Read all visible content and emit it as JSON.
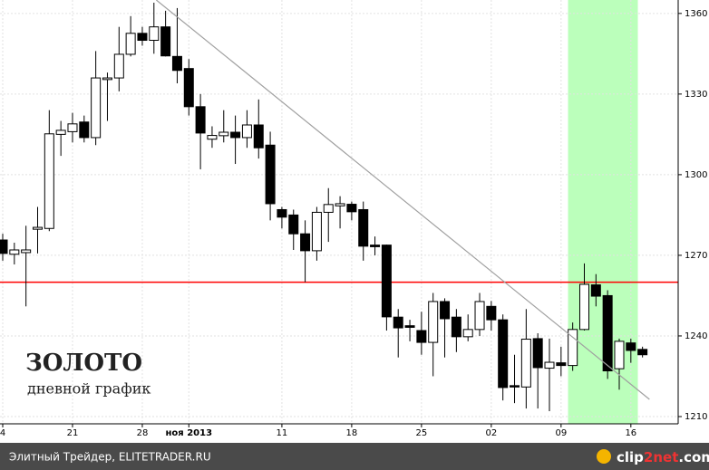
{
  "chart_data": {
    "type": "candlestick",
    "categories": [
      "4",
      null,
      null,
      null,
      null,
      null,
      "21",
      null,
      null,
      null,
      null,
      null,
      "28",
      null,
      null,
      null,
      "ноя 2013",
      null,
      null,
      null,
      null,
      null,
      null,
      null,
      "11",
      null,
      null,
      null,
      null,
      null,
      "18",
      null,
      null,
      null,
      null,
      null,
      "25",
      null,
      null,
      null,
      null,
      null,
      "02",
      null,
      null,
      null,
      null,
      null,
      "09",
      null,
      null,
      null,
      null,
      null,
      "16",
      null
    ],
    "open": [
      1275.7,
      1270.4,
      1271,
      1279.7,
      1280,
      1315,
      1316,
      1319.6,
      1313.8,
      1335.4,
      1336,
      1344.8,
      1352.6,
      1350,
      1355,
      1344,
      1339.5,
      1325.3,
      1313.2,
      1314.5,
      1315.8,
      1313.8,
      1318.5,
      1311,
      1287,
      1285,
      1278,
      1271.7,
      1286,
      1288.4,
      1289,
      1287,
      1273.8,
      1273.8,
      1247,
      1243.8,
      1242,
      1237.6,
      1252.8,
      1247,
      1239.7,
      1242.4,
      1251,
      1246,
      1221.5,
      1221,
      1239,
      1228,
      1230,
      1229,
      1242.4,
      1259,
      1255,
      1227.8,
      1237.4,
      1235
    ],
    "high": [
      1278,
      1274.7,
      1281,
      1288,
      1324,
      1320,
      1323,
      1322,
      1346,
      1338,
      1355,
      1359,
      1355,
      1364,
      1361,
      1362,
      1343,
      1330,
      1318,
      1324,
      1322,
      1324,
      1328,
      1316,
      1288,
      1287,
      1283,
      1288,
      1295,
      1292,
      1290,
      1290,
      1277,
      1274,
      1250,
      1246,
      1249,
      1256,
      1254,
      1250,
      1248,
      1256,
      1253,
      1248,
      1233,
      1250,
      1241,
      1239,
      1236,
      1245,
      1267,
      1263,
      1257,
      1239,
      1239,
      1236
    ],
    "low": [
      1268,
      1266.6,
      1251,
      1270.7,
      1279,
      1307,
      1312,
      1312,
      1311,
      1320,
      1331,
      1344,
      1348,
      1345,
      1344,
      1334,
      1322,
      1302,
      1310,
      1312,
      1304,
      1310,
      1306,
      1283,
      1280,
      1272,
      1260,
      1268,
      1275,
      1280,
      1283,
      1268,
      1270,
      1242,
      1232,
      1238,
      1233,
      1225,
      1232,
      1234,
      1238,
      1240,
      1242,
      1216,
      1215,
      1213,
      1213,
      1212,
      1225,
      1227,
      1242,
      1251,
      1224,
      1220,
      1230,
      1232
    ],
    "close": [
      1270.7,
      1272,
      1272,
      1280.4,
      1315.2,
      1316.5,
      1318.9,
      1313.8,
      1336,
      1336,
      1344.8,
      1352.6,
      1350,
      1355,
      1344.2,
      1338.8,
      1325.3,
      1315.5,
      1314.6,
      1315.8,
      1313.8,
      1318.5,
      1310,
      1289.2,
      1284.2,
      1278,
      1271.7,
      1286,
      1288.9,
      1289.2,
      1286.2,
      1273.4,
      1273.2,
      1247.1,
      1243,
      1243.2,
      1237.6,
      1252.8,
      1246.4,
      1239.7,
      1242.4,
      1252.8,
      1246,
      1220.8,
      1221,
      1238.8,
      1228.2,
      1230.2,
      1229,
      1242.4,
      1259.2,
      1254.8,
      1227,
      1238,
      1234.6,
      1233
    ],
    "up_color": "#ffffff",
    "down_color": "#000000",
    "ylim": [
      1207.3,
      1365
    ],
    "yticks": [
      1210,
      1240,
      1270,
      1300,
      1330,
      1360
    ],
    "grid": true,
    "title": "ЗОЛОТО",
    "subtitle": "дневной график",
    "hline": {
      "y": 1260,
      "color": "#ff0000"
    },
    "trendline": {
      "x": [
        13.2,
        55.6
      ],
      "y": [
        1365,
        1216.4
      ],
      "color": "#a0a0a0"
    },
    "highlight": {
      "x": [
        48.6,
        54.6
      ],
      "color": "#bbffbb"
    }
  },
  "footer": {
    "source": "Элитный Трейдер, ELITETRADER.RU",
    "logo": [
      "clip",
      "2net",
      ".com"
    ]
  }
}
